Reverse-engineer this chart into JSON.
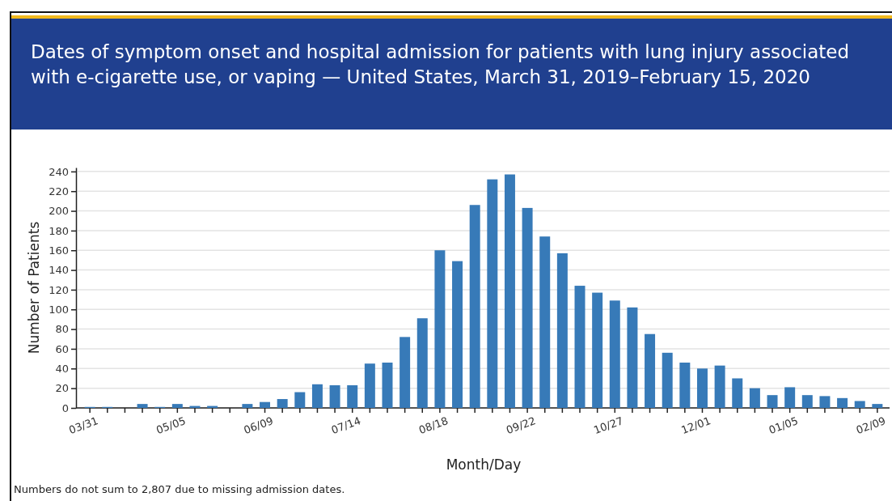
{
  "chart_data": {
    "type": "bar",
    "title": "Dates of symptom onset and hospital admission for patients with lung injury associated with e-cigarette use, or vaping — United States, March 31, 2019–February 15, 2020",
    "xlabel": "Month/Day",
    "ylabel": "Number of Patients",
    "annotations": [
      "Numbers do not sum to 2,807 due to missing admission dates."
    ],
    "categories": [
      "03/31",
      null,
      null,
      null,
      null,
      "05/05",
      null,
      null,
      null,
      null,
      "06/09",
      null,
      null,
      null,
      null,
      "07/14",
      null,
      null,
      null,
      null,
      "08/18",
      null,
      null,
      null,
      null,
      "09/22",
      null,
      null,
      null,
      null,
      "10/27",
      null,
      null,
      null,
      null,
      "12/01",
      null,
      null,
      null,
      null,
      "01/05",
      null,
      null,
      null,
      null,
      "02/09"
    ],
    "values": [
      1,
      1,
      0,
      4,
      1,
      4,
      2,
      2,
      0,
      4,
      6,
      9,
      16,
      24,
      23,
      23,
      45,
      46,
      72,
      91,
      160,
      149,
      206,
      232,
      237,
      203,
      174,
      157,
      124,
      117,
      109,
      102,
      75,
      56,
      46,
      40,
      43,
      30,
      20,
      13,
      21,
      13,
      12,
      10,
      7,
      4
    ],
    "color": "#377ab8",
    "ylim": [
      0,
      244
    ],
    "yticks": [
      0,
      20,
      40,
      60,
      80,
      100,
      120,
      140,
      160,
      180,
      200,
      220,
      240
    ],
    "grid": "y",
    "legend": false
  }
}
